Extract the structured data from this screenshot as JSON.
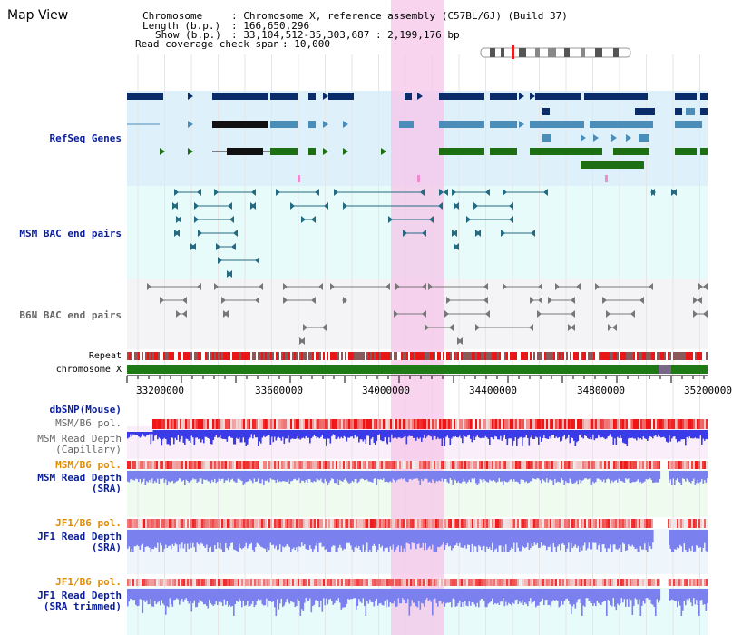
{
  "page_title": "Map View",
  "header": {
    "chromosome_key": "Chromosome",
    "chromosome_val": ": Chromosome X, reference assembly (C57BL/6J) (Build 37)",
    "length_key": "Length (b.p.)",
    "length_val": ": 166,650,296",
    "show_key": "Show (b.p.)",
    "show_val": ": 33,104,512-35,303,687 : 2,199,176 bp",
    "coverage_key": "Read coverage check span",
    "coverage_val": ": 10,000"
  },
  "tracks": {
    "refseq": "RefSeq Genes",
    "msm_bac": "MSM BAC end pairs",
    "b6n_bac": "B6N BAC end pairs",
    "repeat": "Repeat",
    "chromosome": "chromosome X",
    "dbsnp": "dbSNP(Mouse)",
    "msm_b6_pol_1": "MSM/B6 pol.",
    "msm_depth_cap_1": "MSM Read Depth",
    "msm_depth_cap_2": "(Capillary)",
    "msm_b6_pol_2": "MSM/B6 pol.",
    "msm_depth_sra_1": "MSM Read Depth",
    "msm_depth_sra_2": "(SRA)",
    "jf1_b6_pol_1": "JF1/B6 pol.",
    "jf1_depth_sra_1": "JF1 Read Depth",
    "jf1_depth_sra_2": "(SRA)",
    "jf1_b6_pol_2": "JF1/B6 pol.",
    "jf1_depth_trim_1": "JF1 Read Depth",
    "jf1_depth_trim_2": "(SRA trimmed)"
  },
  "axis": {
    "ticks": [
      "33200000",
      "33600000",
      "34000000",
      "34400000",
      "34800000",
      "35200000"
    ]
  },
  "colors": {
    "refseq_bg": "#def0fa",
    "msm_bac_bg": "#e8fbfb",
    "b6n_bac_bg": "#f4f4f6",
    "highlight": "#f5c6ea",
    "track_dark_blue": "#0a2d6a",
    "track_steel_blue": "#4a8db8",
    "track_green": "#1e6e14",
    "bac_teal": "#246a80",
    "depth_blue": "#3a3ae6",
    "depth_light_blue": "#7a80ee",
    "pol_red": "#e02020",
    "label_blue": "#0a1e9a",
    "label_orange": "#e08a00",
    "chromosome_green": "#1e7a14"
  }
}
